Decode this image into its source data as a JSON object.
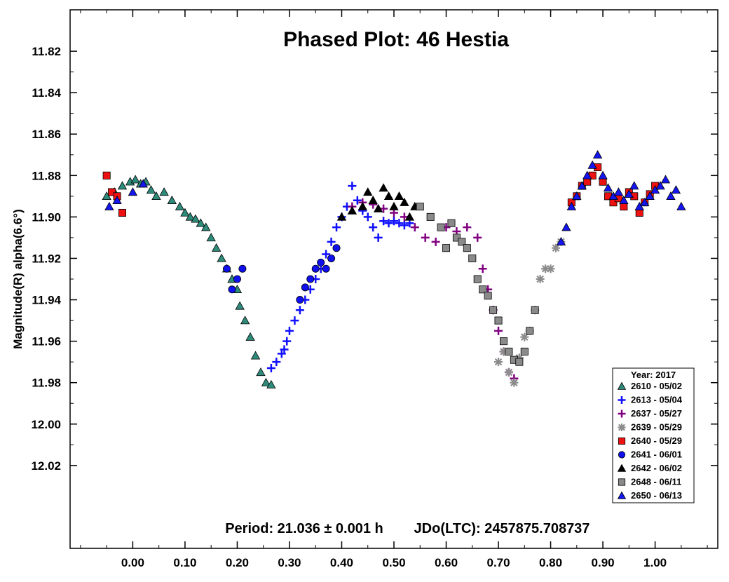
{
  "chart_data": {
    "type": "scatter",
    "title": "Phased Plot: 46 Hestia",
    "ylabel": "Magnitude(R) alpha(6.6°)",
    "xlabel": "",
    "xlim": [
      -0.12,
      1.12
    ],
    "ylim": [
      11.8,
      12.06
    ],
    "y_inverted": true,
    "x_ticks": [
      "0.00",
      "0.10",
      "0.20",
      "0.30",
      "0.40",
      "0.50",
      "0.60",
      "0.70",
      "0.80",
      "0.90",
      "1.00"
    ],
    "y_ticks": [
      "11.82",
      "11.84",
      "11.86",
      "11.88",
      "11.90",
      "11.92",
      "11.94",
      "11.96",
      "11.98",
      "12.00",
      "12.02"
    ],
    "period_text": "Period: 21.036 ± 0.001 h",
    "jdo_text": "JDo(LTC): 2457875.708737",
    "legend": {
      "title": "Year: 2017",
      "placement": "bottom-right",
      "entries": [
        {
          "label": "2610 - 05/02",
          "marker": "triangle",
          "color": "#2e8b7a"
        },
        {
          "label": "2613 - 05/04",
          "marker": "plus",
          "color": "#1010ff"
        },
        {
          "label": "2637 - 05/27",
          "marker": "plus",
          "color": "#800080"
        },
        {
          "label": "2639 - 05/29",
          "marker": "asterisk",
          "color": "#8c8c8c"
        },
        {
          "label": "2640 - 05/29",
          "marker": "square",
          "color": "#ee1111"
        },
        {
          "label": "2641 - 06/01",
          "marker": "circle",
          "color": "#1010ee"
        },
        {
          "label": "2642 - 06/02",
          "marker": "triangle",
          "color": "#000000"
        },
        {
          "label": "2648 - 06/11",
          "marker": "square",
          "color": "#8a8a8a"
        },
        {
          "label": "2650 - 06/13",
          "marker": "triangle",
          "color": "#1515ee"
        }
      ]
    },
    "series": [
      {
        "name": "2610 - 05/02",
        "x": [
          -0.05,
          -0.035,
          -0.02,
          -0.005,
          0.005,
          0.015,
          0.025,
          0.035,
          0.045,
          0.06,
          0.075,
          0.09,
          0.1,
          0.11,
          0.12,
          0.13,
          0.14,
          0.15,
          0.16,
          0.17,
          0.18,
          0.19,
          0.2,
          0.205,
          0.215,
          0.225,
          0.235,
          0.245,
          0.255,
          0.265
        ],
        "y": [
          11.89,
          11.888,
          11.885,
          11.883,
          11.882,
          11.884,
          11.883,
          11.887,
          11.89,
          11.888,
          11.892,
          11.895,
          11.898,
          11.9,
          11.901,
          11.903,
          11.905,
          11.91,
          11.915,
          11.92,
          11.925,
          11.93,
          11.935,
          11.943,
          11.95,
          11.958,
          11.967,
          11.975,
          11.98,
          11.981
        ]
      },
      {
        "name": "2613 - 05/04",
        "x": [
          0.265,
          0.275,
          0.285,
          0.29,
          0.295,
          0.3,
          0.31,
          0.32,
          0.33,
          0.34,
          0.35,
          0.36,
          0.37,
          0.38,
          0.39,
          0.4,
          0.41,
          0.42,
          0.43,
          0.44,
          0.45,
          0.46,
          0.47,
          0.48,
          0.49,
          0.5,
          0.51,
          0.52,
          0.53
        ],
        "y": [
          11.973,
          11.97,
          11.966,
          11.964,
          11.96,
          11.955,
          11.95,
          11.945,
          11.94,
          11.935,
          11.93,
          11.925,
          11.918,
          11.912,
          11.905,
          11.9,
          11.895,
          11.885,
          11.892,
          11.897,
          11.9,
          11.905,
          11.91,
          11.902,
          11.903,
          11.902,
          11.903,
          11.904,
          11.903
        ]
      },
      {
        "name": "2637 - 05/27",
        "x": [
          0.42,
          0.44,
          0.46,
          0.48,
          0.5,
          0.52,
          0.54,
          0.56,
          0.58,
          0.6,
          0.62,
          0.64,
          0.66,
          0.67,
          0.68,
          0.69,
          0.7,
          0.71,
          0.72,
          0.73
        ],
        "y": [
          11.895,
          11.893,
          11.894,
          11.896,
          11.898,
          11.9,
          11.905,
          11.91,
          11.912,
          11.905,
          11.907,
          11.905,
          11.91,
          11.925,
          11.935,
          11.945,
          11.955,
          11.965,
          11.975,
          11.978
        ]
      },
      {
        "name": "2639 - 05/29",
        "x": [
          0.7,
          0.71,
          0.72,
          0.73,
          0.74,
          0.75,
          0.76,
          0.77,
          0.78,
          0.79,
          0.8,
          0.81,
          0.82
        ],
        "y": [
          11.97,
          11.965,
          11.975,
          11.98,
          11.968,
          11.958,
          11.955,
          11.945,
          11.93,
          11.925,
          11.925,
          11.915,
          11.912
        ]
      },
      {
        "name": "2640 - 05/29",
        "x": [
          -0.05,
          -0.04,
          -0.03,
          -0.02,
          0.84,
          0.85,
          0.86,
          0.87,
          0.88,
          0.89,
          0.9,
          0.91,
          0.92,
          0.93,
          0.94,
          0.95,
          0.96,
          0.97,
          0.98,
          0.99,
          1.0
        ],
        "y": [
          11.88,
          11.888,
          11.89,
          11.898,
          11.893,
          11.89,
          11.885,
          11.883,
          11.88,
          11.876,
          11.883,
          11.89,
          11.893,
          11.891,
          11.895,
          11.888,
          11.89,
          11.898,
          11.893,
          11.889,
          11.885
        ]
      },
      {
        "name": "2641 - 06/01",
        "x": [
          0.18,
          0.19,
          0.2,
          0.21,
          0.32,
          0.33,
          0.34,
          0.35,
          0.36,
          0.37,
          0.38,
          0.39
        ],
        "y": [
          11.925,
          11.935,
          11.93,
          11.925,
          11.94,
          11.934,
          11.93,
          11.925,
          11.922,
          11.925,
          11.92,
          11.915
        ]
      },
      {
        "name": "2642 - 06/02",
        "x": [
          0.4,
          0.42,
          0.44,
          0.45,
          0.46,
          0.47,
          0.48,
          0.49,
          0.5,
          0.51,
          0.52,
          0.53,
          0.54
        ],
        "y": [
          11.9,
          11.897,
          11.895,
          11.888,
          11.892,
          11.896,
          11.886,
          11.89,
          11.895,
          11.89,
          11.893,
          11.9,
          11.895
        ]
      },
      {
        "name": "2648 - 06/11",
        "x": [
          0.55,
          0.57,
          0.59,
          0.6,
          0.61,
          0.62,
          0.63,
          0.64,
          0.65,
          0.66,
          0.67,
          0.68,
          0.69,
          0.7,
          0.71,
          0.72,
          0.73,
          0.74,
          0.75,
          0.76,
          0.77
        ],
        "y": [
          11.895,
          11.9,
          11.905,
          11.915,
          11.903,
          11.91,
          11.912,
          11.915,
          11.92,
          11.93,
          11.935,
          11.938,
          11.945,
          11.95,
          11.96,
          11.965,
          11.969,
          11.97,
          11.965,
          11.955,
          11.945
        ]
      },
      {
        "name": "2650 - 06/13",
        "x": [
          -0.045,
          -0.03,
          0.0,
          0.02,
          0.82,
          0.83,
          0.84,
          0.85,
          0.86,
          0.87,
          0.88,
          0.89,
          0.9,
          0.91,
          0.92,
          0.93,
          0.94,
          0.95,
          0.96,
          0.97,
          0.98,
          0.99,
          1.0,
          1.01,
          1.02,
          1.03,
          1.04,
          1.05
        ],
        "y": [
          11.895,
          11.892,
          11.888,
          11.884,
          11.912,
          11.905,
          11.895,
          11.89,
          11.885,
          11.88,
          11.875,
          11.87,
          11.88,
          11.886,
          11.89,
          11.888,
          11.892,
          11.889,
          11.885,
          11.895,
          11.893,
          11.89,
          11.887,
          11.885,
          11.882,
          11.89,
          11.887,
          11.895
        ]
      }
    ]
  }
}
